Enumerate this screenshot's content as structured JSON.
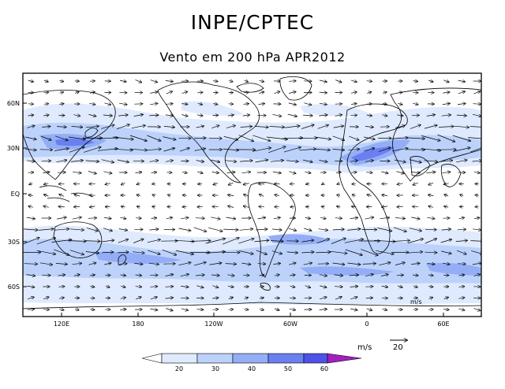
{
  "title": "INPE/CPTEC",
  "subtitle": "Vento em 200 hPa APR2012",
  "map": {
    "lat_labels": [
      "60N",
      "30N",
      "EQ",
      "30S",
      "60S"
    ],
    "lon_labels": [
      "120E",
      "180",
      "120W",
      "60W",
      "0",
      "60E"
    ],
    "reference_vector": {
      "value": "20",
      "units": "m/s"
    },
    "map_corner_label": "m/s"
  },
  "colorbar": {
    "levels": [
      "20",
      "30",
      "40",
      "50",
      "60"
    ],
    "colors": [
      "#ffffff",
      "#dfeafe",
      "#bcd2fb",
      "#93aef6",
      "#6a7ff0",
      "#4d53e8",
      "#a020c0"
    ]
  },
  "colors": {
    "wind_light": "#dfeafe",
    "wind_mid": "#bcd2fb",
    "wind_strong": "#93aef6",
    "jet_core": "#6a7ff0"
  }
}
